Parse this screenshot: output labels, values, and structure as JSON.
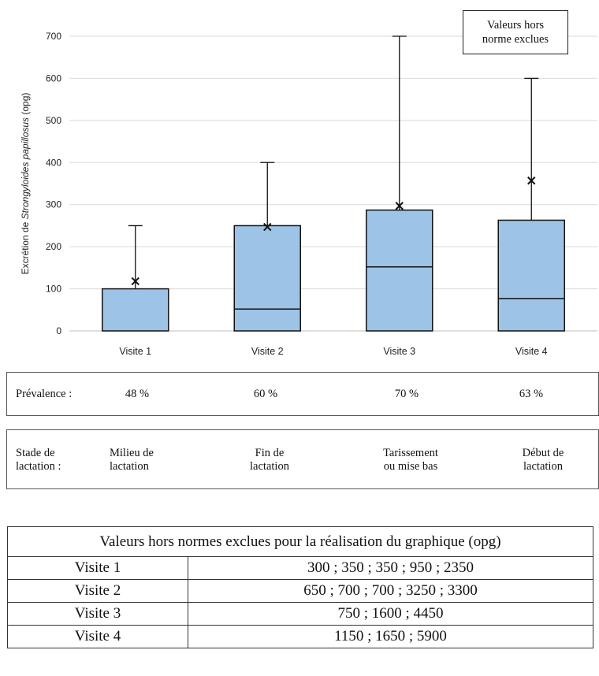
{
  "chart_data": {
    "type": "box",
    "ylabel_prefix": "Excrétion de ",
    "ylabel_italic": "Strongyloides papillosus",
    "ylabel_suffix": " (opg)",
    "ylim": [
      0,
      700
    ],
    "yticks": [
      0,
      100,
      200,
      300,
      400,
      500,
      600,
      700
    ],
    "grid": true,
    "categories": [
      "Visite 1",
      "Visite 2",
      "Visite 3",
      "Visite 4"
    ],
    "boxes": [
      {
        "min": 0,
        "q1": 0,
        "median": 0,
        "q3": 100,
        "max": 250,
        "mean": 118
      },
      {
        "min": 0,
        "q1": 0,
        "median": 52,
        "q3": 250,
        "max": 400,
        "mean": 247
      },
      {
        "min": 0,
        "q1": 0,
        "median": 152,
        "q3": 287,
        "max": 700,
        "mean": 297
      },
      {
        "min": 0,
        "q1": 0,
        "median": 77,
        "q3": 263,
        "max": 600,
        "mean": 357
      }
    ],
    "colors": {
      "box_fill": "#9dc3e6",
      "stroke": "#111111",
      "grid": "#d9d9d9"
    },
    "note": [
      "Valeurs hors",
      "norme exclues"
    ]
  },
  "prevalence": {
    "label": "Prévalence :",
    "values": [
      "48 %",
      "60 %",
      "70 %",
      "63 %"
    ]
  },
  "stage": {
    "label": [
      "Stade de",
      "lactation :"
    ],
    "values": [
      [
        "Milieu de",
        "lactation"
      ],
      [
        "Fin de",
        "lactation"
      ],
      [
        "Tarissement",
        "ou mise bas"
      ],
      [
        "Début de",
        "lactation"
      ]
    ]
  },
  "excluded_table": {
    "title": "Valeurs hors normes exclues pour la réalisation du graphique (opg)",
    "rows": [
      {
        "visit": "Visite 1",
        "values": "300 ; 350 ; 350 ; 950 ; 2350"
      },
      {
        "visit": "Visite 2",
        "values": "650 ; 700 ; 700 ; 3250 ; 3300"
      },
      {
        "visit": "Visite 3",
        "values": "750 ; 1600 ; 4450"
      },
      {
        "visit": "Visite 4",
        "values": "1150 ; 1650 ; 5900"
      }
    ]
  }
}
